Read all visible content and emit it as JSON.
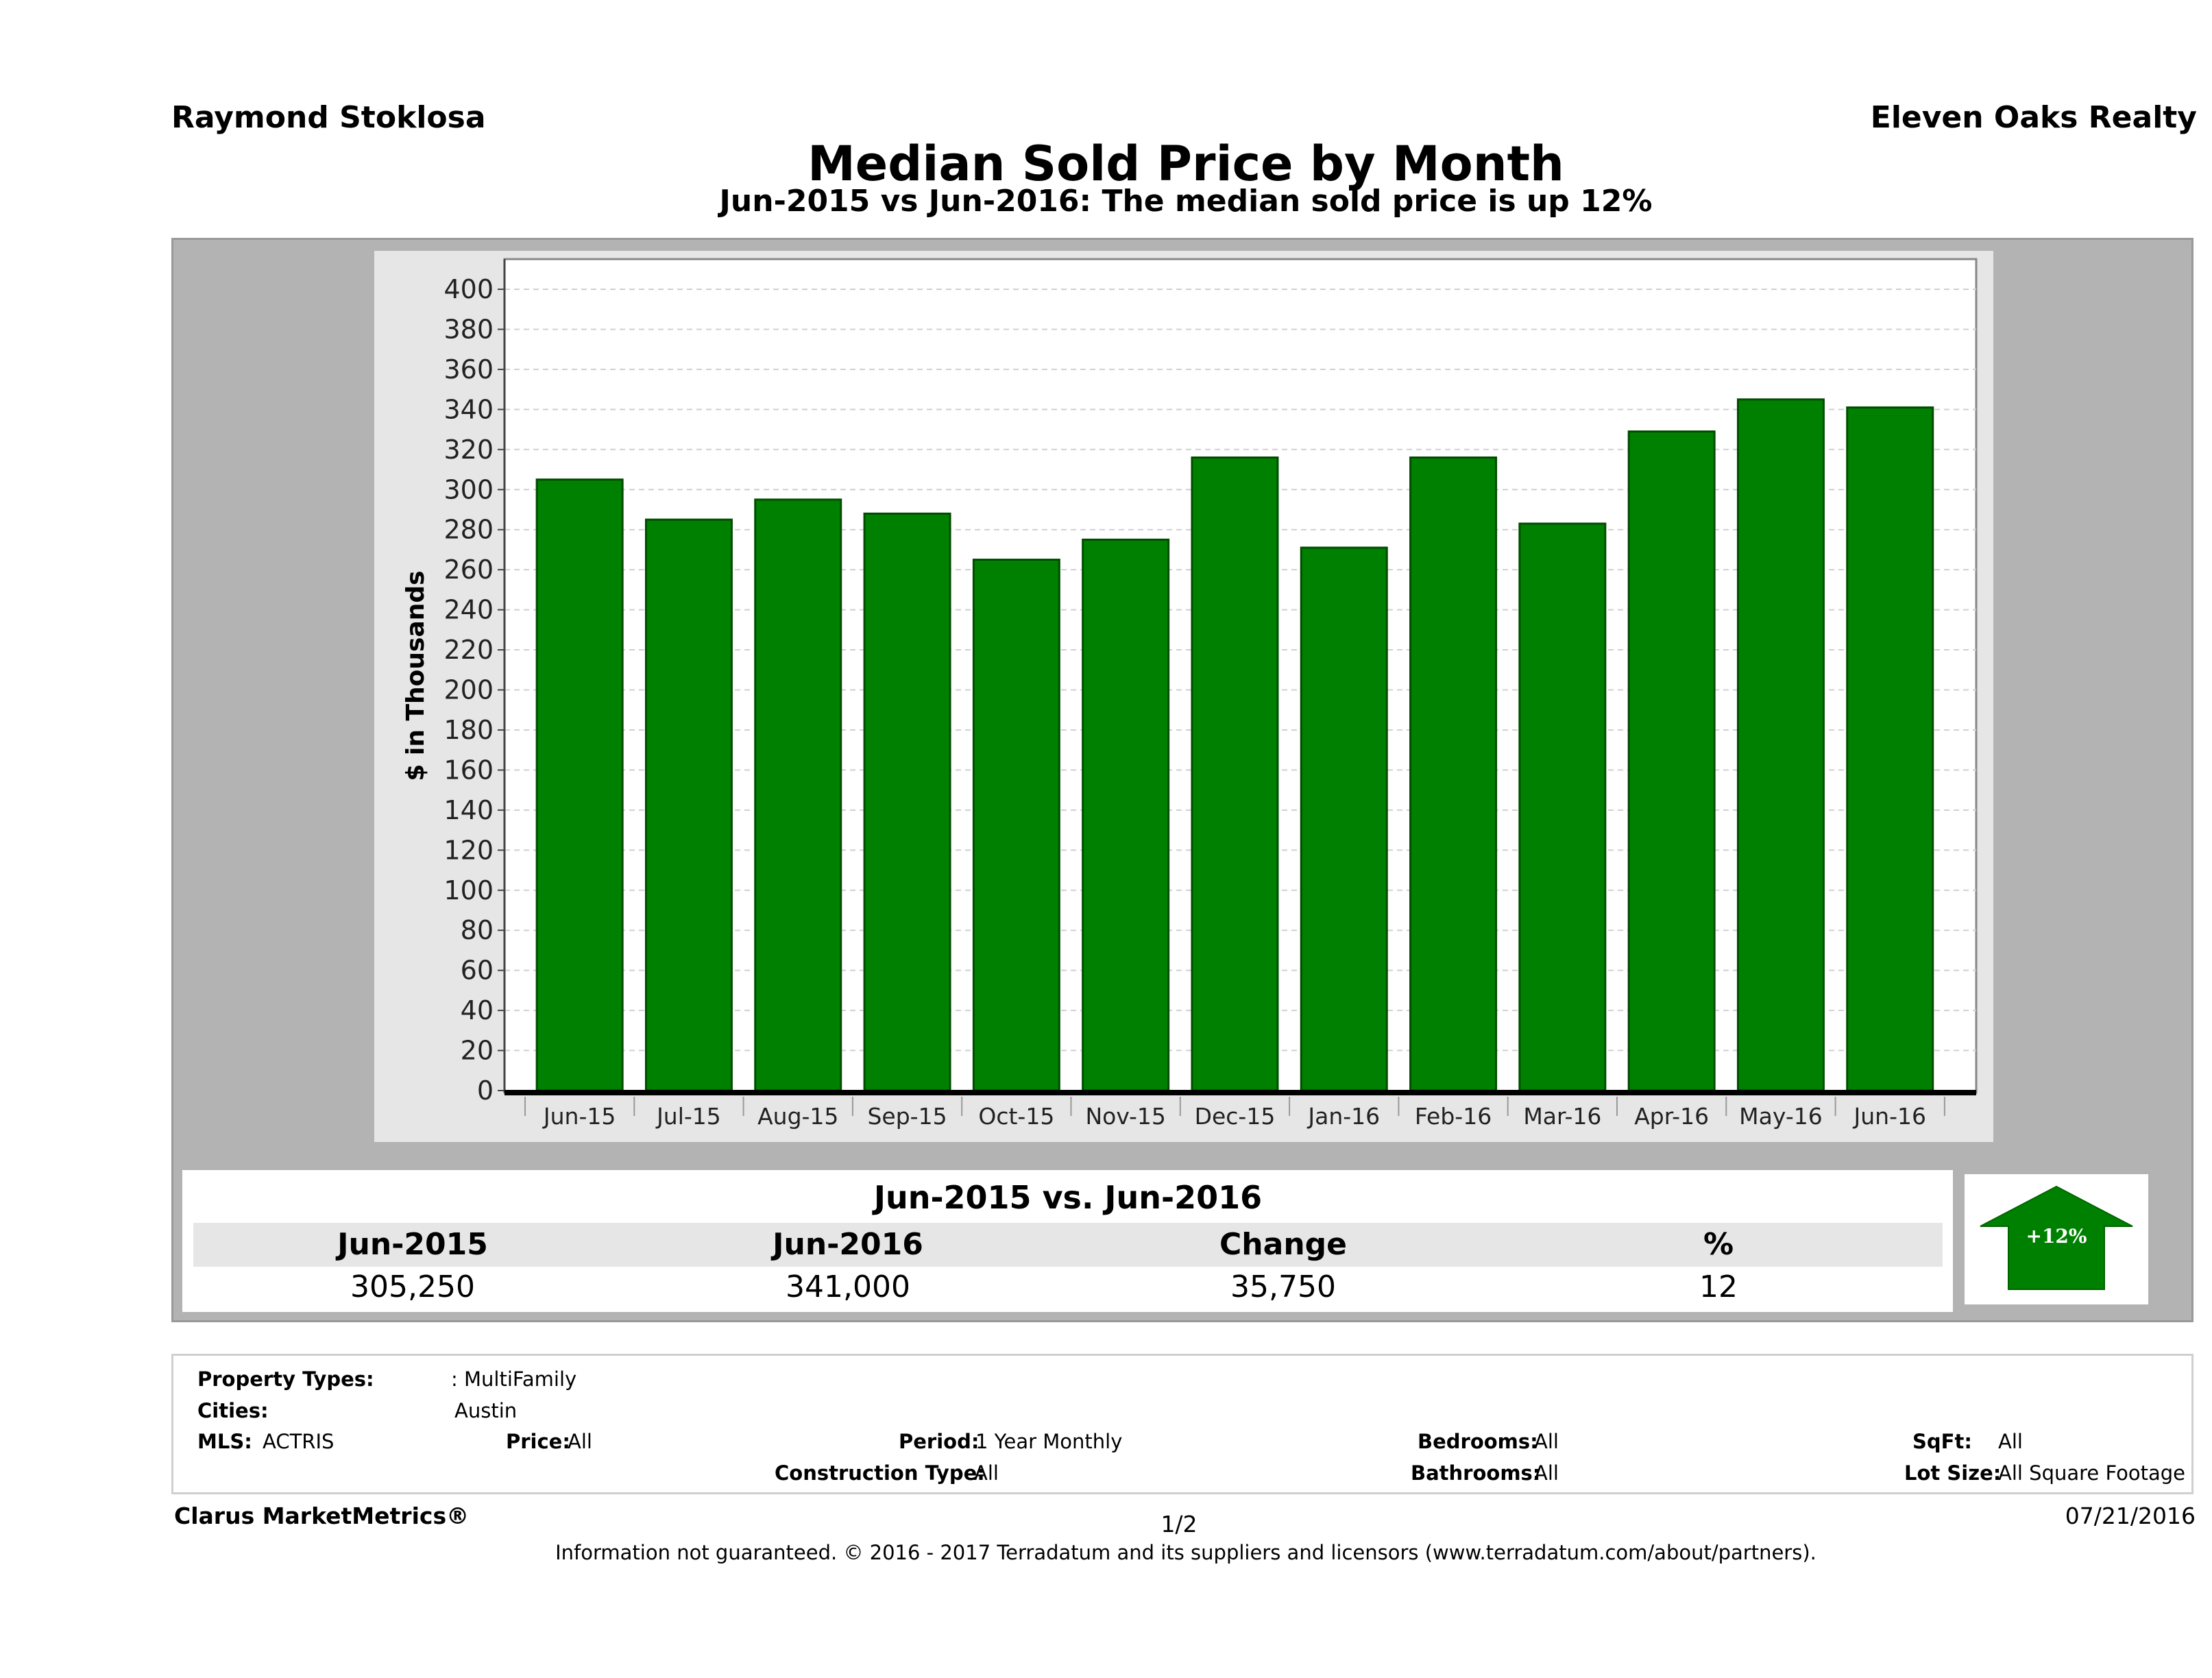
{
  "header": {
    "agent": "Raymond Stoklosa",
    "brokerage": "Eleven Oaks Realty",
    "title": "Median Sold Price by Month",
    "subtitle": "Jun-2015 vs Jun-2016: The median sold price is up 12%"
  },
  "chart_data": {
    "type": "bar",
    "ylabel": "$ in Thousands",
    "xlabel": "",
    "ylim": [
      0,
      400
    ],
    "ytick_step": 20,
    "grid": true,
    "bar_color": "#008000",
    "categories": [
      "Jun-15",
      "Jul-15",
      "Aug-15",
      "Sep-15",
      "Oct-15",
      "Nov-15",
      "Dec-15",
      "Jan-16",
      "Feb-16",
      "Mar-16",
      "Apr-16",
      "May-16",
      "Jun-16"
    ],
    "values": [
      305,
      285,
      295,
      288,
      265,
      275,
      316,
      271,
      316,
      283,
      329,
      345,
      341
    ]
  },
  "summary": {
    "heading": "Jun-2015 vs. Jun-2016",
    "columns": [
      {
        "label": "Jun-2015",
        "value": "305,250"
      },
      {
        "label": "Jun-2016",
        "value": "341,000"
      },
      {
        "label": "Change",
        "value": "35,750"
      },
      {
        "label": "%",
        "value": "12"
      }
    ],
    "arrow_label": "+12%",
    "arrow_color": "#008000"
  },
  "filters": {
    "property_types_label": "Property Types:",
    "property_types_value": ": MultiFamily",
    "cities_label": "Cities:",
    "cities_value": "Austin",
    "mls_label": "MLS:",
    "mls_value": "ACTRIS",
    "price_label": "Price:",
    "price_value": "All",
    "period_label": "Period:",
    "period_value": "1 Year Monthly",
    "construction_label": "Construction Type:",
    "construction_value": "All",
    "bedrooms_label": "Bedrooms:",
    "bedrooms_value": "All",
    "bathrooms_label": "Bathrooms:",
    "bathrooms_value": "All",
    "sqft_label": "SqFt:",
    "sqft_value": "All",
    "lotsize_label": "Lot Size:",
    "lotsize_value": "All Square Footage"
  },
  "footer": {
    "brand": "Clarus MarketMetrics®",
    "page": "1/2",
    "date": "07/21/2016",
    "disclaimer": "Information not guaranteed. © 2016 - 2017 Terradatum and its suppliers and licensors (www.terradatum.com/about/partners)."
  }
}
